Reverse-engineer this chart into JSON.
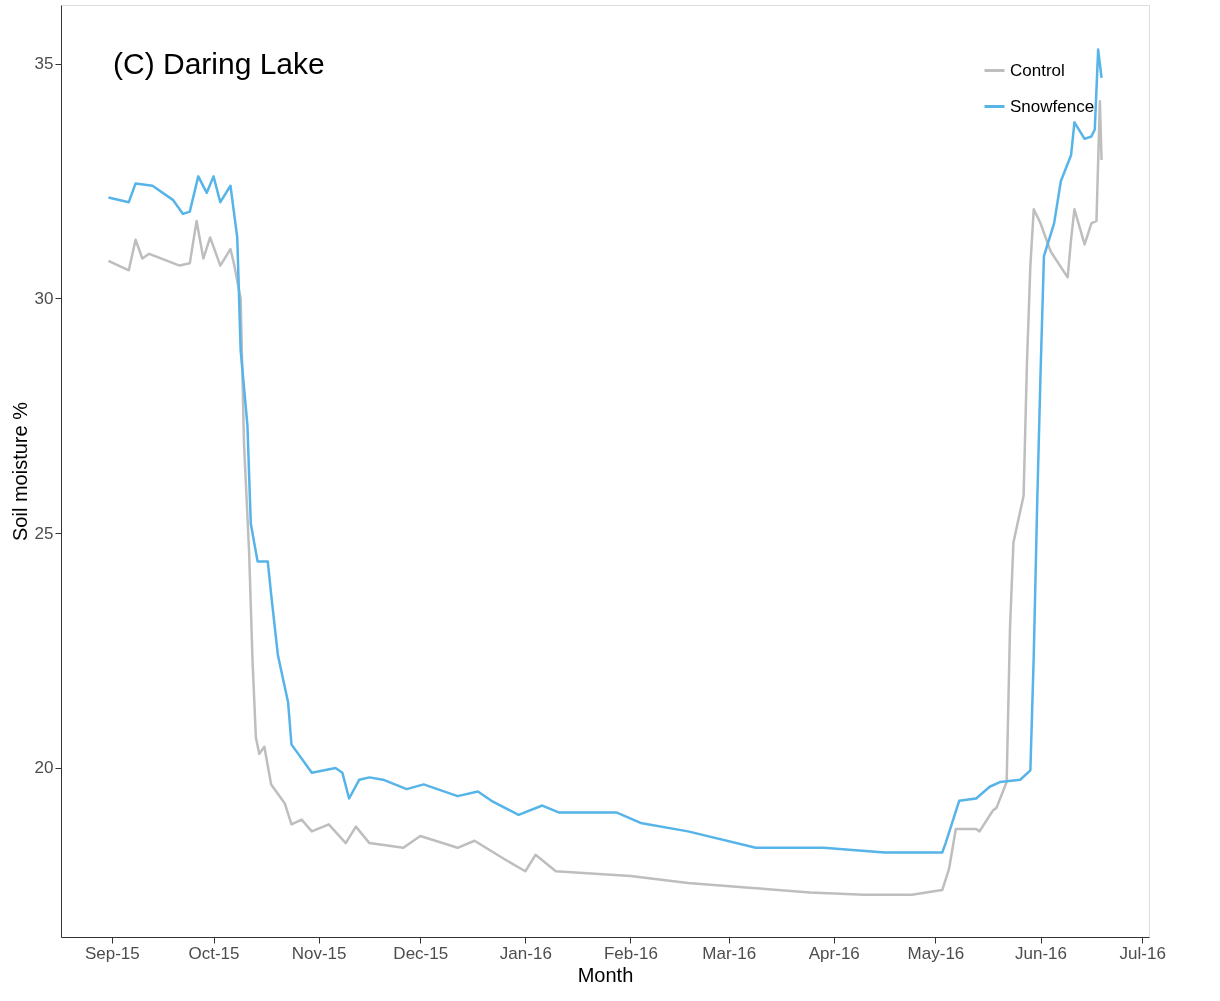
{
  "chart_data": {
    "type": "line",
    "title": "(C) Daring Lake",
    "xlabel": "Month",
    "ylabel": "Soil moisture %",
    "xlim": [
      "2015-08-17",
      "2016-07-03"
    ],
    "ylim": [
      16.4,
      36.25
    ],
    "xticks": [
      {
        "value": "2015-09-01",
        "label": "Sep-15"
      },
      {
        "value": "2015-10-01",
        "label": "Oct-15"
      },
      {
        "value": "2015-11-01",
        "label": "Nov-15"
      },
      {
        "value": "2015-12-01",
        "label": "Dec-15"
      },
      {
        "value": "2016-01-01",
        "label": "Jan-16"
      },
      {
        "value": "2016-02-01",
        "label": "Feb-16"
      },
      {
        "value": "2016-03-01",
        "label": "Mar-16"
      },
      {
        "value": "2016-04-01",
        "label": "Apr-16"
      },
      {
        "value": "2016-05-01",
        "label": "May-16"
      },
      {
        "value": "2016-06-01",
        "label": "Jun-16"
      },
      {
        "value": "2016-07-01",
        "label": "Jul-16"
      }
    ],
    "yticks": [
      20,
      25,
      30,
      35
    ],
    "grid": false,
    "legend": "top right",
    "marker": "none",
    "line_style": "solid",
    "series": [
      {
        "name": "Control",
        "color": "#bebebe",
        "x": [
          "2015-08-31T00:00",
          "2015-09-06T00:00",
          "2015-09-08T00:00",
          "2015-09-10T00:00",
          "2015-09-12T00:00",
          "2015-09-21T00:00",
          "2015-09-24T00:00",
          "2015-09-26T00:00",
          "2015-09-28T00:00",
          "2015-09-30T00:00",
          "2015-10-03T00:00",
          "2015-10-06T00:00",
          "2015-10-07T00:00",
          "2015-10-09T00:00",
          "2015-10-10T00:00",
          "2015-10-11T12:00",
          "2015-10-12T12:00",
          "2015-10-13T12:00",
          "2015-10-14T12:00",
          "2015-10-16T00:00",
          "2015-10-18T00:00",
          "2015-10-22T00:00",
          "2015-10-24T00:00",
          "2015-10-27T00:00",
          "2015-10-30T00:00",
          "2015-11-04T00:00",
          "2015-11-09T00:00",
          "2015-11-12T00:00",
          "2015-11-16T00:00",
          "2015-11-26T00:00",
          "2015-12-01T00:00",
          "2015-12-12T00:00",
          "2015-12-17T00:00",
          "2015-12-26T00:00",
          "2016-01-01T00:00",
          "2016-01-04T00:00",
          "2016-01-10T00:00",
          "2016-02-01T00:00",
          "2016-02-18T00:00",
          "2016-03-07T00:00",
          "2016-03-25T00:00",
          "2016-04-10T00:00",
          "2016-04-24T00:00",
          "2016-05-03T00:00",
          "2016-05-05T00:00",
          "2016-05-07T00:00",
          "2016-05-13T00:00",
          "2016-05-14T00:00",
          "2016-05-18T00:00",
          "2016-05-19T00:00",
          "2016-05-22T00:00",
          "2016-05-23T00:00",
          "2016-05-24T00:00",
          "2016-05-27T00:00",
          "2016-05-28T00:00",
          "2016-05-29T00:00",
          "2016-05-30T00:00",
          "2016-06-01T00:00",
          "2016-06-04T00:00",
          "2016-06-09T00:00",
          "2016-06-10T00:00",
          "2016-06-11T00:00",
          "2016-06-14T00:00",
          "2016-06-16T00:00",
          "2016-06-17T12:00",
          "2016-06-18T12:00",
          "2016-06-19T00:00"
        ],
        "values": [
          30.8,
          30.6,
          31.25,
          30.85,
          30.95,
          30.7,
          30.75,
          31.65,
          30.85,
          31.3,
          30.7,
          31.05,
          30.75,
          30.0,
          26.9,
          24.6,
          22.3,
          20.65,
          20.3,
          20.45,
          19.65,
          19.25,
          18.8,
          18.9,
          18.65,
          18.8,
          18.4,
          18.75,
          18.4,
          18.3,
          18.55,
          18.3,
          18.45,
          18.05,
          17.8,
          18.15,
          17.8,
          17.7,
          17.55,
          17.45,
          17.35,
          17.3,
          17.3,
          17.4,
          17.85,
          18.7,
          18.7,
          18.65,
          19.1,
          19.15,
          19.7,
          23.0,
          24.8,
          25.8,
          28.65,
          30.7,
          31.9,
          31.6,
          31.0,
          30.45,
          31.25,
          31.9,
          31.15,
          31.6,
          31.65,
          34.2,
          32.95
        ]
      },
      {
        "name": "Snowfence",
        "color": "#56b4e9",
        "x": [
          "2015-08-31T00:00",
          "2015-09-06T00:00",
          "2015-09-08T00:00",
          "2015-09-13T00:00",
          "2015-09-19T00:00",
          "2015-09-22T00:00",
          "2015-09-24T00:00",
          "2015-09-26T12:00",
          "2015-09-29T00:00",
          "2015-10-01T00:00",
          "2015-10-03T00:00",
          "2015-10-06T00:00",
          "2015-10-08T00:00",
          "2015-10-09T00:00",
          "2015-10-11T00:00",
          "2015-10-12T00:00",
          "2015-10-14T00:00",
          "2015-10-17T00:00",
          "2015-10-18T00:00",
          "2015-10-20T00:00",
          "2015-10-23T00:00",
          "2015-10-24T00:00",
          "2015-10-26T00:00",
          "2015-10-30T00:00",
          "2015-11-06T00:00",
          "2015-11-08T00:00",
          "2015-11-10T00:00",
          "2015-11-13T00:00",
          "2015-11-16T00:00",
          "2015-11-20T00:00",
          "2015-11-27T00:00",
          "2015-12-02T00:00",
          "2015-12-12T00:00",
          "2015-12-18T00:00",
          "2015-12-22T00:00",
          "2015-12-30T00:00",
          "2016-01-06T00:00",
          "2016-01-11T00:00",
          "2016-01-28T00:00",
          "2016-02-04T00:00",
          "2016-02-18T00:00",
          "2016-03-09T00:00",
          "2016-03-29T00:00",
          "2016-04-16T00:00",
          "2016-05-03T00:00",
          "2016-05-04T00:00",
          "2016-05-08T00:00",
          "2016-05-13T00:00",
          "2016-05-17T00:00",
          "2016-05-20T00:00",
          "2016-05-26T00:00",
          "2016-05-29T00:00",
          "2016-05-30T00:00",
          "2016-05-31T00:00",
          "2016-06-01T00:00",
          "2016-06-02T00:00",
          "2016-06-05T00:00",
          "2016-06-07T00:00",
          "2016-06-10T00:00",
          "2016-06-11T00:00",
          "2016-06-14T00:00",
          "2016-06-16T00:00",
          "2016-06-17T00:00",
          "2016-06-18T00:00",
          "2016-06-19T00:00"
        ],
        "values": [
          32.15,
          32.05,
          32.45,
          32.4,
          32.1,
          31.8,
          31.85,
          32.6,
          32.25,
          32.6,
          32.05,
          32.4,
          31.3,
          28.9,
          27.3,
          25.2,
          24.4,
          24.4,
          23.7,
          22.4,
          21.4,
          20.5,
          20.3,
          19.9,
          20.0,
          19.9,
          19.35,
          19.75,
          19.8,
          19.75,
          19.55,
          19.65,
          19.4,
          19.5,
          19.3,
          19.0,
          19.2,
          19.05,
          19.05,
          18.83,
          18.65,
          18.3,
          18.3,
          18.2,
          18.2,
          18.4,
          19.3,
          19.35,
          19.6,
          19.7,
          19.75,
          19.95,
          22.4,
          25.6,
          28.4,
          30.9,
          31.6,
          32.5,
          33.05,
          33.75,
          33.4,
          33.45,
          33.6,
          35.3,
          34.7
        ]
      }
    ]
  }
}
